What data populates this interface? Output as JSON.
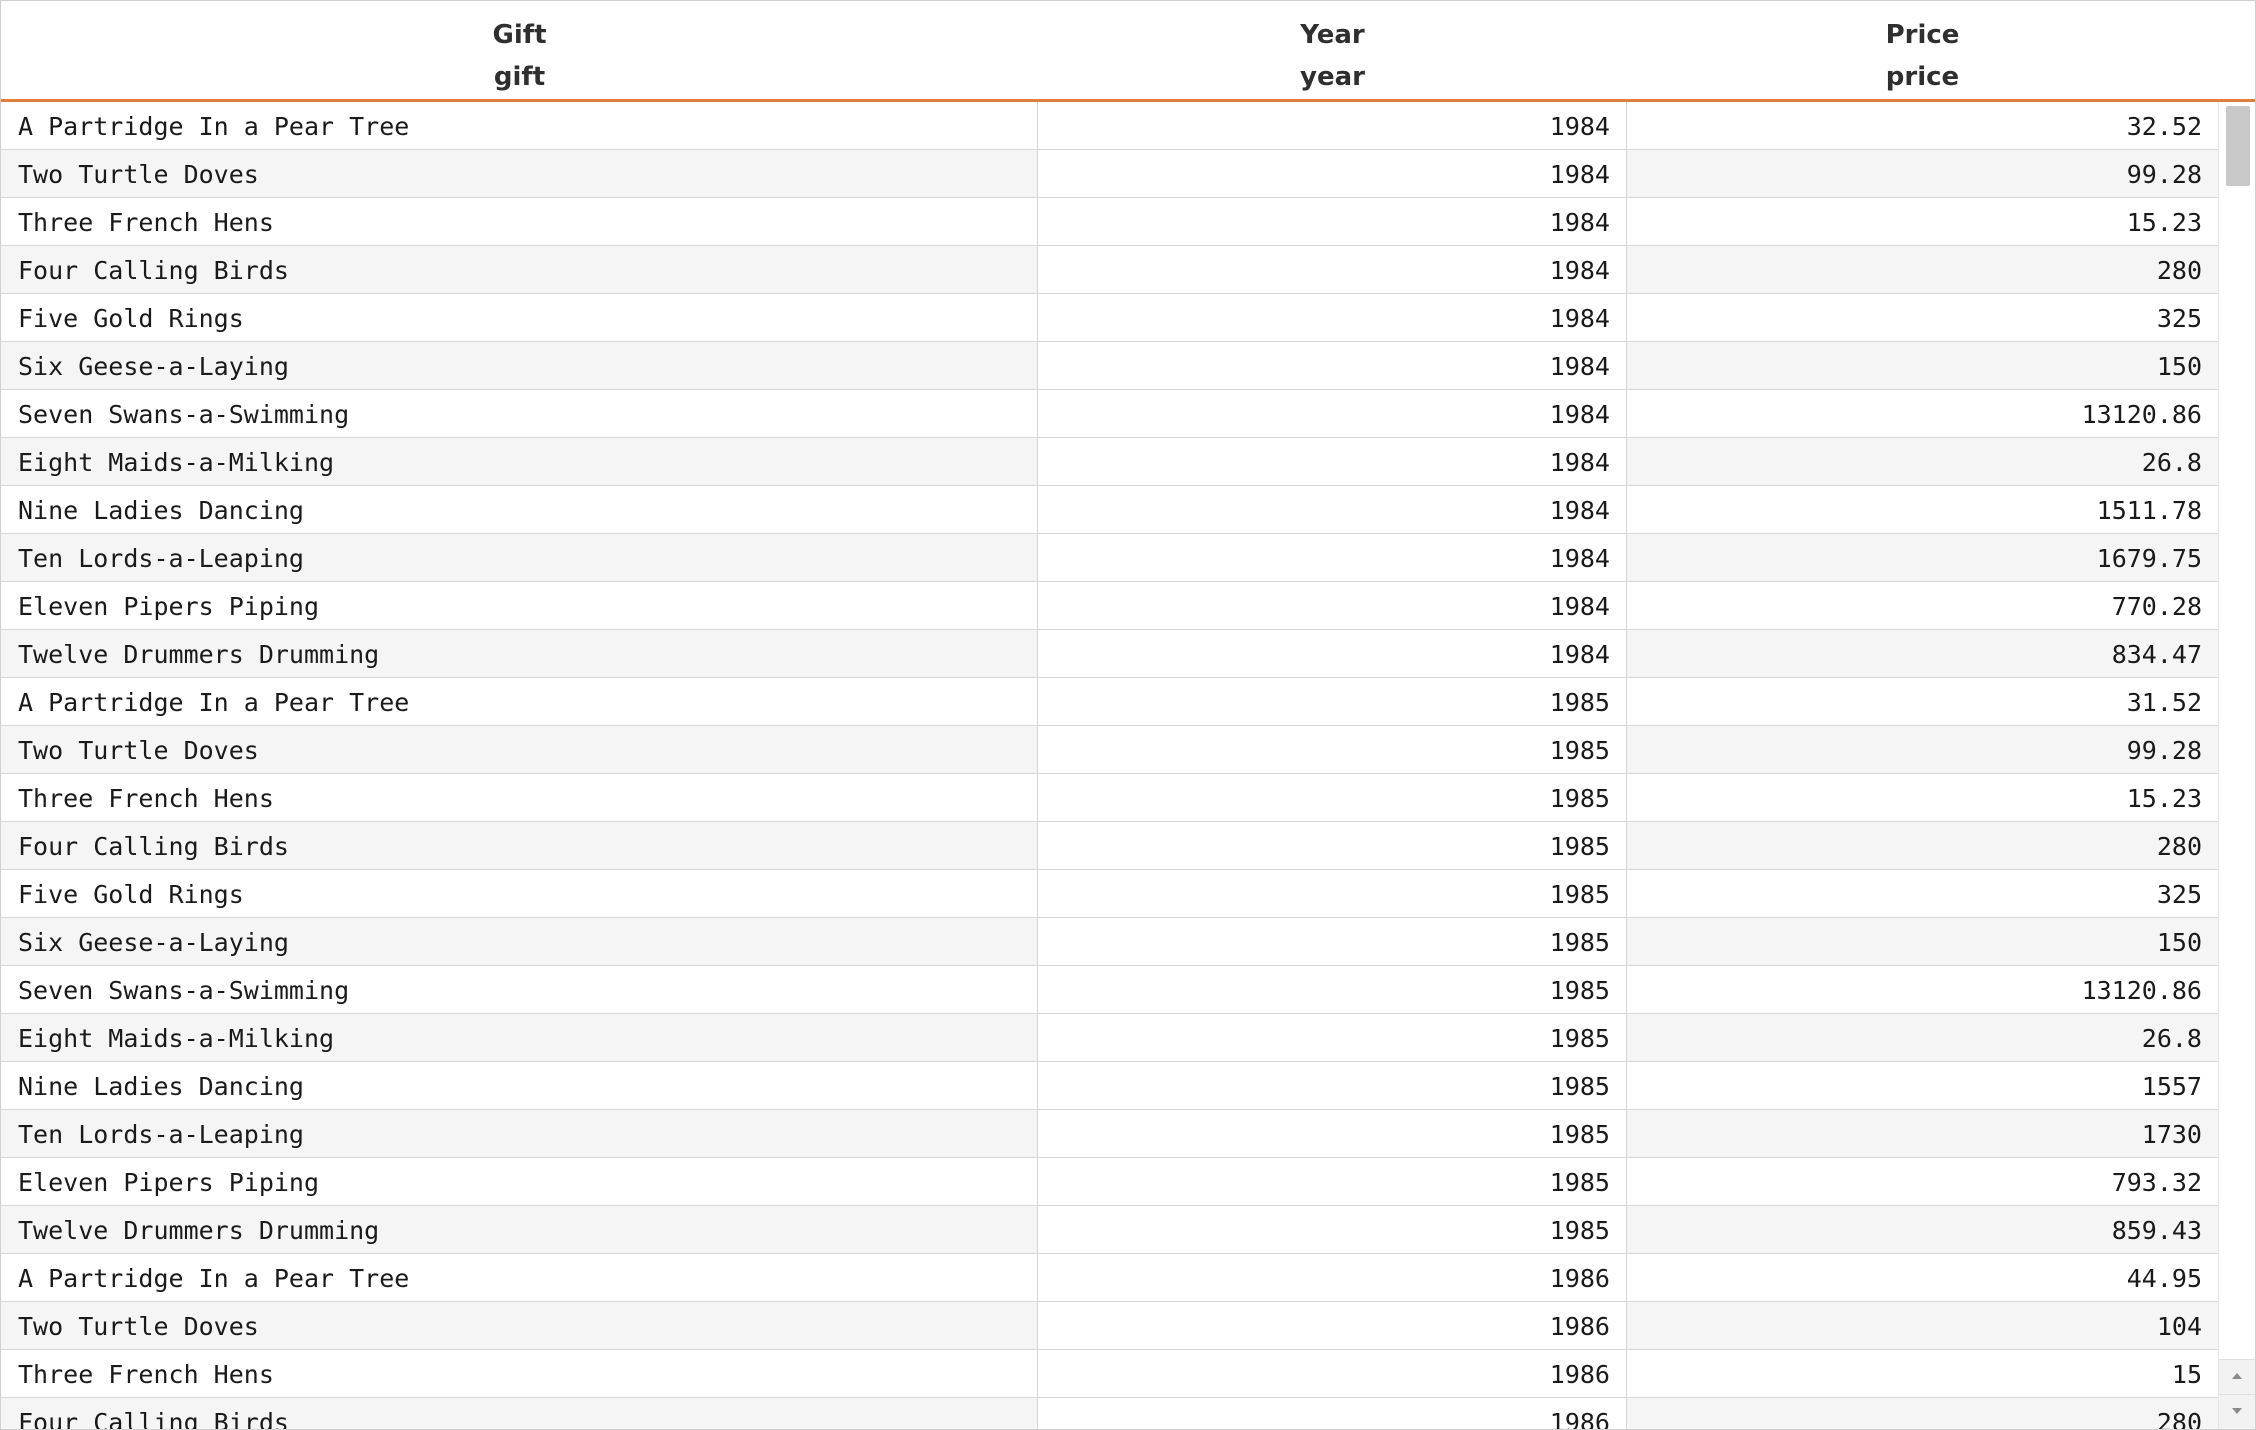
{
  "table": {
    "columns": [
      {
        "label": "Gift",
        "field": "gift"
      },
      {
        "label": "Year",
        "field": "year"
      },
      {
        "label": "Price",
        "field": "price"
      }
    ],
    "rows": [
      {
        "gift": "A Partridge In a Pear Tree",
        "year": "1984",
        "price": "32.52"
      },
      {
        "gift": "Two Turtle Doves",
        "year": "1984",
        "price": "99.28"
      },
      {
        "gift": "Three French Hens",
        "year": "1984",
        "price": "15.23"
      },
      {
        "gift": "Four Calling Birds",
        "year": "1984",
        "price": "280"
      },
      {
        "gift": "Five Gold Rings",
        "year": "1984",
        "price": "325"
      },
      {
        "gift": "Six Geese-a-Laying",
        "year": "1984",
        "price": "150"
      },
      {
        "gift": "Seven Swans-a-Swimming",
        "year": "1984",
        "price": "13120.86"
      },
      {
        "gift": "Eight Maids-a-Milking",
        "year": "1984",
        "price": "26.8"
      },
      {
        "gift": "Nine Ladies Dancing",
        "year": "1984",
        "price": "1511.78"
      },
      {
        "gift": "Ten Lords-a-Leaping",
        "year": "1984",
        "price": "1679.75"
      },
      {
        "gift": "Eleven Pipers Piping",
        "year": "1984",
        "price": "770.28"
      },
      {
        "gift": "Twelve Drummers Drumming",
        "year": "1984",
        "price": "834.47"
      },
      {
        "gift": "A Partridge In a Pear Tree",
        "year": "1985",
        "price": "31.52"
      },
      {
        "gift": "Two Turtle Doves",
        "year": "1985",
        "price": "99.28"
      },
      {
        "gift": "Three French Hens",
        "year": "1985",
        "price": "15.23"
      },
      {
        "gift": "Four Calling Birds",
        "year": "1985",
        "price": "280"
      },
      {
        "gift": "Five Gold Rings",
        "year": "1985",
        "price": "325"
      },
      {
        "gift": "Six Geese-a-Laying",
        "year": "1985",
        "price": "150"
      },
      {
        "gift": "Seven Swans-a-Swimming",
        "year": "1985",
        "price": "13120.86"
      },
      {
        "gift": "Eight Maids-a-Milking",
        "year": "1985",
        "price": "26.8"
      },
      {
        "gift": "Nine Ladies Dancing",
        "year": "1985",
        "price": "1557"
      },
      {
        "gift": "Ten Lords-a-Leaping",
        "year": "1985",
        "price": "1730"
      },
      {
        "gift": "Eleven Pipers Piping",
        "year": "1985",
        "price": "793.32"
      },
      {
        "gift": "Twelve Drummers Drumming",
        "year": "1985",
        "price": "859.43"
      },
      {
        "gift": "A Partridge In a Pear Tree",
        "year": "1986",
        "price": "44.95"
      },
      {
        "gift": "Two Turtle Doves",
        "year": "1986",
        "price": "104"
      },
      {
        "gift": "Three French Hens",
        "year": "1986",
        "price": "15"
      },
      {
        "gift": "Four Calling Birds",
        "year": "1986",
        "price": "280"
      }
    ]
  },
  "colors": {
    "header_underline": "#e07f3c",
    "row_stripe": "#f5f5f5",
    "scroll_thumb": "#c8c8c8"
  },
  "icons": {
    "scroll_up": "triangle-up-icon",
    "scroll_down": "triangle-down-icon"
  }
}
